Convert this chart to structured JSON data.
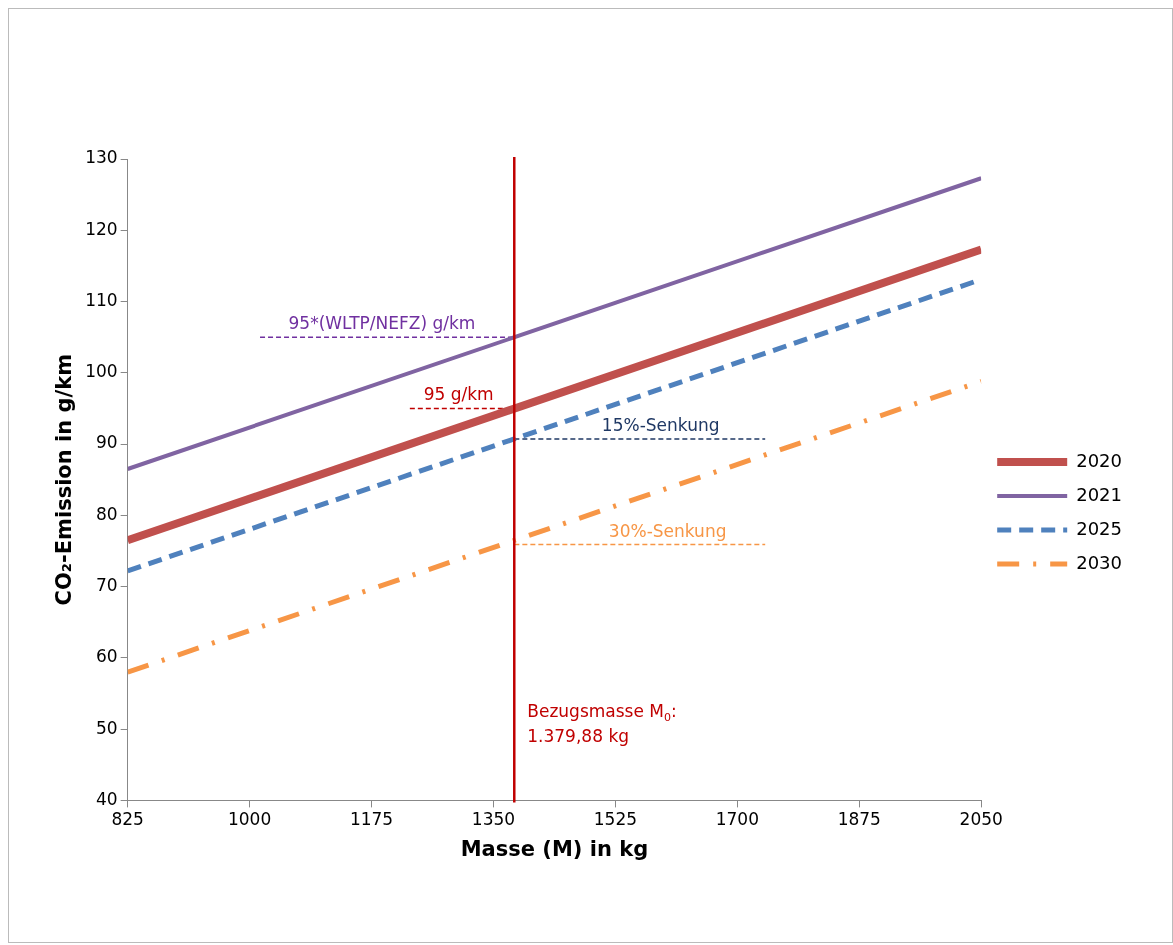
{
  "chart_data": {
    "type": "line",
    "xlabel": "Masse (M) in kg",
    "ylabel": "CO₂-Emission in g/km",
    "xlim": [
      825,
      2050
    ],
    "xticks": [
      825,
      1000,
      1175,
      1350,
      1525,
      1700,
      1875,
      2050
    ],
    "ylim": [
      40,
      130
    ],
    "yticks": [
      40,
      50,
      60,
      70,
      80,
      90,
      100,
      110,
      120,
      130
    ],
    "grid": false,
    "legend": "right",
    "marker": "none",
    "series": [
      {
        "name": "2020",
        "color": "#c0504d",
        "line_style": "solid",
        "x": [
          825,
          2050
        ],
        "values": [
          76.5,
          117.3
        ]
      },
      {
        "name": "2021",
        "color": "#8064a2",
        "line_style": "solid",
        "x": [
          825,
          2050
        ],
        "values": [
          86.5,
          127.3
        ]
      },
      {
        "name": "2025",
        "color": "#4f81bd",
        "line_style": "dashed",
        "x": [
          825,
          2050
        ],
        "values": [
          72.2,
          113.1
        ]
      },
      {
        "name": "2030",
        "color": "#f79646",
        "line_style": "dashdot",
        "x": [
          825,
          2050
        ],
        "values": [
          58.0,
          98.8
        ]
      },
      {
        "color": "#7030a0",
        "line_style": "dashed",
        "x": [
          1015,
          1380
        ],
        "values": [
          105,
          105
        ]
      },
      {
        "color": "#c00000",
        "line_style": "dashed",
        "x": [
          1230,
          1380
        ],
        "values": [
          95,
          95
        ]
      },
      {
        "color": "#1f3864",
        "line_style": "dashed",
        "x": [
          1380,
          1740
        ],
        "values": [
          90.7,
          90.7
        ]
      },
      {
        "color": "#f79646",
        "line_style": "dashed",
        "x": [
          1380,
          1740
        ],
        "values": [
          75.9,
          75.9
        ]
      }
    ],
    "ref_lines": [
      {
        "axis": "x",
        "value": 1379.88,
        "label": "Bezugsmasse M$_{0}$: 1.379,88 kg",
        "color": "#c00000"
      }
    ],
    "annotations": [
      {
        "text": "95*(WLTP/NEFZ) g/km",
        "x": 1190,
        "y": 105
      },
      {
        "text": "95 g/km",
        "x": 1300,
        "y": 95
      },
      {
        "text": "15%-Senkung",
        "x": 1590,
        "y": 90.7
      },
      {
        "text": "30%-Senkung",
        "x": 1600,
        "y": 75.9
      }
    ]
  }
}
